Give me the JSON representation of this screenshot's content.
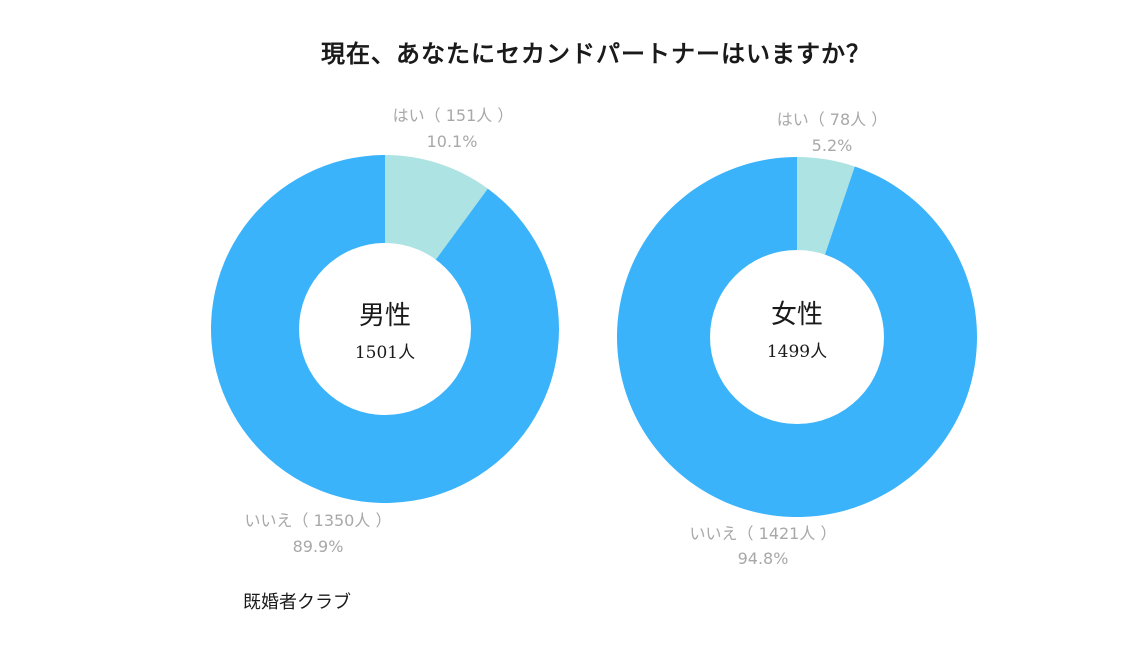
{
  "title": "現在、あなたにセカンドパートナーはいますか？",
  "source": "既婚者クラブ",
  "chart_data": [
    {
      "type": "pie",
      "center_label": "男性",
      "total": "1501人",
      "slices": [
        {
          "label": "はい（ 151人 ）",
          "count": 151,
          "percent_text": "10.1%",
          "percent": 10.1,
          "color": "#ade3e3"
        },
        {
          "label": "いいえ（ 1350人 ）",
          "count": 1350,
          "percent_text": "89.9%",
          "percent": 89.9,
          "color": "#3ab3fb"
        }
      ]
    },
    {
      "type": "pie",
      "center_label": "女性",
      "total": "1499人",
      "slices": [
        {
          "label": "はい（ 78人 ）",
          "count": 78,
          "percent_text": "5.2%",
          "percent": 5.2,
          "color": "#ade3e3"
        },
        {
          "label": "いいえ（ 1421人 ）",
          "count": 1421,
          "percent_text": "94.8%",
          "percent": 94.8,
          "color": "#3ab3fb"
        }
      ]
    }
  ]
}
